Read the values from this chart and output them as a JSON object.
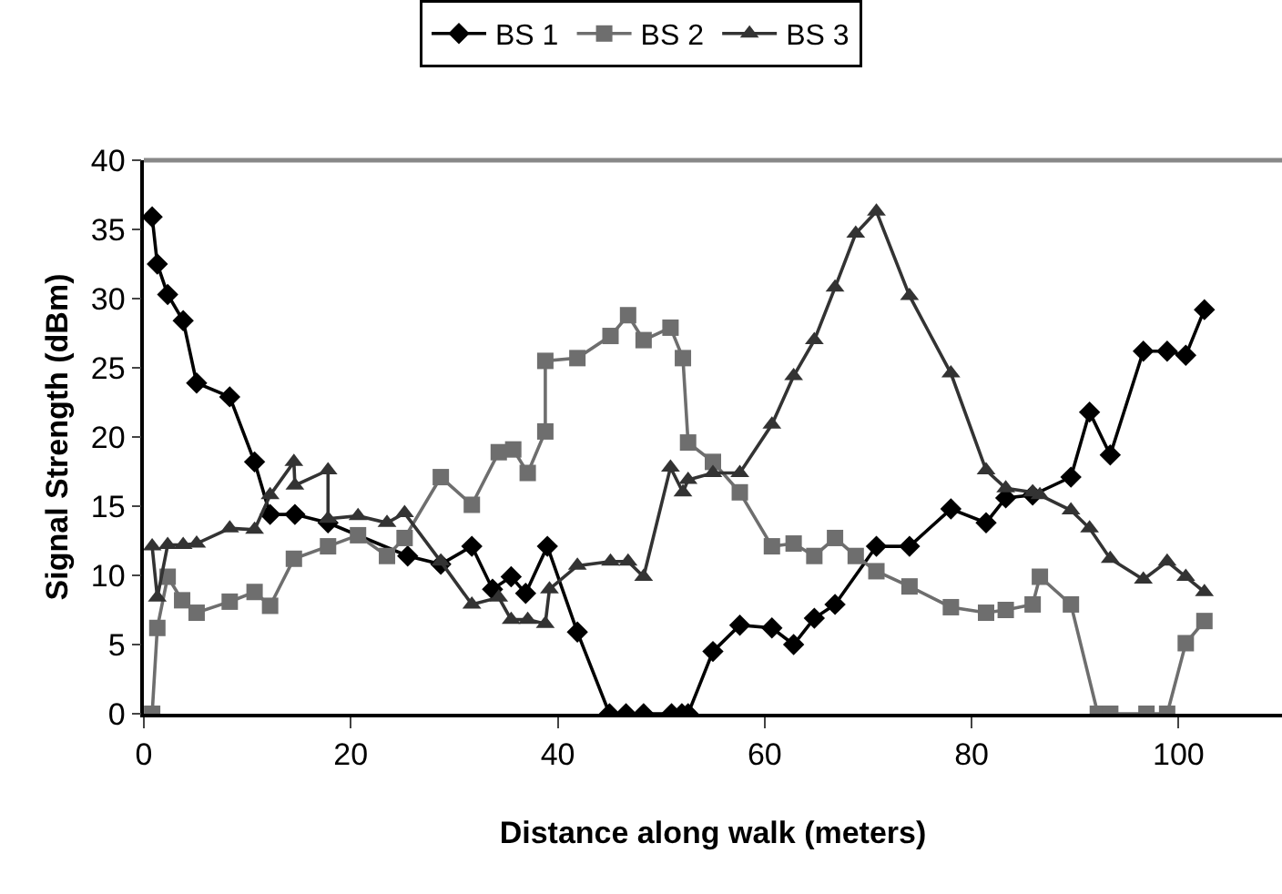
{
  "chart_data": {
    "type": "line",
    "xlabel": "Distance along walk (meters)",
    "ylabel": "Signal Strength (dBm)",
    "xlim": [
      0,
      110
    ],
    "xticks": [
      0,
      20,
      40,
      60,
      80,
      100
    ],
    "ylim": [
      0,
      40
    ],
    "yticks": [
      0,
      5,
      10,
      15,
      20,
      25,
      30,
      35,
      40
    ],
    "legend": "top",
    "line_style": "solid",
    "series": [
      {
        "name": "BS 1",
        "color": "#000000",
        "marker": "diamond",
        "x": [
          0.8,
          1.3,
          2.3,
          3.8,
          5.1,
          8.3,
          10.7,
          12.2,
          14.6,
          17.8,
          25.5,
          28.7,
          31.7,
          33.7,
          35.5,
          36.9,
          39,
          41.9,
          45,
          46.6,
          48.3,
          51,
          52,
          52.6,
          55,
          57.6,
          60.7,
          62.8,
          64.8,
          66.8,
          70.8,
          74,
          78,
          81.4,
          83.3,
          85.9,
          89.6,
          91.4,
          93.4,
          96.6,
          98.9,
          100.7,
          102.5
        ],
        "values": [
          35.9,
          32.5,
          30.3,
          28.4,
          23.9,
          22.9,
          18.2,
          14.4,
          14.4,
          13.8,
          11.4,
          10.8,
          12.1,
          9,
          9.9,
          8.7,
          12.1,
          5.9,
          0,
          0,
          0,
          0,
          0,
          0,
          4.5,
          6.4,
          6.2,
          5,
          6.9,
          7.9,
          12.1,
          12.1,
          14.8,
          13.8,
          15.6,
          15.8,
          17.1,
          21.8,
          18.7,
          26.2,
          26.2,
          25.9,
          29.2
        ]
      },
      {
        "name": "BS 2",
        "color": "#6e6e6e",
        "marker": "square",
        "x": [
          0.8,
          1.3,
          2.3,
          3.7,
          5.1,
          8.3,
          10.7,
          12.2,
          14.5,
          17.8,
          20.7,
          23.5,
          25.2,
          28.7,
          31.7,
          34.3,
          35.7,
          37.1,
          38.8,
          38.8,
          41.9,
          45.1,
          46.8,
          48.3,
          50.9,
          52.1,
          52.6,
          55,
          57.6,
          60.7,
          62.8,
          64.8,
          66.8,
          68.8,
          70.8,
          74,
          78,
          81.4,
          83.3,
          85.9,
          86.6,
          89.6,
          92.2,
          93.4,
          96.9,
          98.9,
          100.7,
          102.5
        ],
        "values": [
          0,
          6.2,
          9.9,
          8.2,
          7.3,
          8.1,
          8.8,
          7.8,
          11.2,
          12.1,
          12.9,
          11.4,
          12.7,
          17.1,
          15.1,
          18.9,
          19.1,
          17.4,
          20.4,
          25.5,
          25.7,
          27.3,
          28.8,
          27,
          27.9,
          25.7,
          19.6,
          18.2,
          16,
          12.1,
          12.3,
          11.4,
          12.7,
          11.4,
          10.3,
          9.2,
          7.7,
          7.3,
          7.5,
          7.9,
          9.9,
          7.9,
          0,
          0,
          0,
          0,
          5.1,
          6.7
        ]
      },
      {
        "name": "BS 3",
        "color": "#333333",
        "marker": "triangle",
        "x": [
          0.8,
          1.3,
          2.3,
          3.8,
          5.1,
          8.3,
          10.7,
          12.2,
          14.5,
          14.6,
          17.8,
          17.8,
          20.7,
          23.5,
          25.2,
          28.7,
          31.7,
          34.3,
          35.5,
          37.1,
          38.8,
          39.2,
          41.9,
          45.1,
          46.8,
          48.3,
          50.9,
          52.1,
          52.6,
          55,
          57.6,
          60.7,
          62.8,
          64.8,
          66.8,
          68.8,
          70.8,
          74,
          78,
          81.4,
          83.3,
          85.9,
          86.6,
          89.6,
          91.4,
          93.4,
          96.6,
          98.9,
          100.7,
          102.5
        ],
        "values": [
          12.1,
          8.4,
          12.2,
          12.2,
          12.3,
          13.4,
          13.3,
          15.8,
          18.2,
          16.5,
          17.6,
          14.1,
          14.3,
          13.8,
          14.5,
          11,
          7.9,
          8.4,
          6.8,
          6.8,
          6.5,
          9,
          10.7,
          11,
          11,
          9.9,
          17.8,
          16,
          16.9,
          17.4,
          17.4,
          20.9,
          24.4,
          27,
          30.8,
          34.7,
          36.3,
          30.2,
          24.6,
          17.6,
          16.3,
          16,
          15.8,
          14.7,
          13.4,
          11.2,
          9.7,
          11,
          9.9,
          8.8
        ]
      }
    ]
  }
}
